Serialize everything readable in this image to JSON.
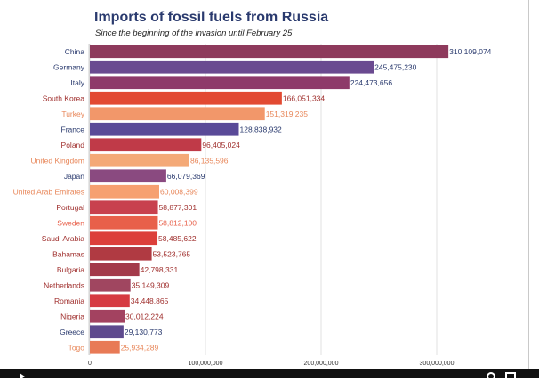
{
  "chart_data": {
    "type": "bar",
    "orientation": "horizontal",
    "title": "Imports of fossil fuels from Russia",
    "subtitle": "Since the beginning of the invasion until February 25",
    "xlim": [
      0,
      365000000
    ],
    "xticks": [
      0,
      100000000,
      200000000,
      300000000
    ],
    "xtick_labels": [
      "0",
      "100,000,000",
      "200,000,000",
      "300,000,000"
    ],
    "grid": true,
    "categories": [
      "China",
      "Germany",
      "Italy",
      "South Korea",
      "Turkey",
      "France",
      "Poland",
      "United Kingdom",
      "Japan",
      "United Arab Emirates",
      "Portugal",
      "Sweden",
      "Saudi Arabia",
      "Bahamas",
      "Bulgaria",
      "Netherlands",
      "Romania",
      "Nigeria",
      "Greece",
      "Togo"
    ],
    "values": [
      310109074,
      245475230,
      224473656,
      166051334,
      151319235,
      128838932,
      96405024,
      86135596,
      66079369,
      60008399,
      58877301,
      58812100,
      58485622,
      53523765,
      42798331,
      35149309,
      34448865,
      30012224,
      29130773,
      25934289
    ],
    "value_labels": [
      "310,109,074",
      "245,475,230",
      "224,473,656",
      "166,051,334",
      "151,319,235",
      "128,838,932",
      "96,405,024",
      "86,135,596",
      "66,079,369",
      "60,008,399",
      "58,877,301",
      "58,812,100",
      "58,485,622",
      "53,523,765",
      "42,798,331",
      "35,149,309",
      "34,448,865",
      "30,012,224",
      "29,130,773",
      "25,934,289"
    ],
    "colors": [
      "#8e3a5c",
      "#6a4a90",
      "#8e3a6a",
      "#e24a32",
      "#f2976a",
      "#5a4a98",
      "#c03a48",
      "#f4a977",
      "#8a4a80",
      "#f6a070",
      "#c8414e",
      "#e8604a",
      "#dc3f3a",
      "#b03a42",
      "#a33a4a",
      "#a04660",
      "#d63a42",
      "#a34260",
      "#5e4a8e",
      "#e87a56"
    ],
    "label_colors": [
      "#2a3a6e",
      "#2a3a6e",
      "#2a3a6e",
      "#a0302e",
      "#e8875a",
      "#2a3a6e",
      "#a0302e",
      "#e8875a",
      "#2a3a6e",
      "#e8875a",
      "#a0302e",
      "#e8604a",
      "#a0302e",
      "#a0302e",
      "#a0302e",
      "#a0302e",
      "#a0302e",
      "#a0302e",
      "#2a3a6e",
      "#e8875a"
    ]
  }
}
